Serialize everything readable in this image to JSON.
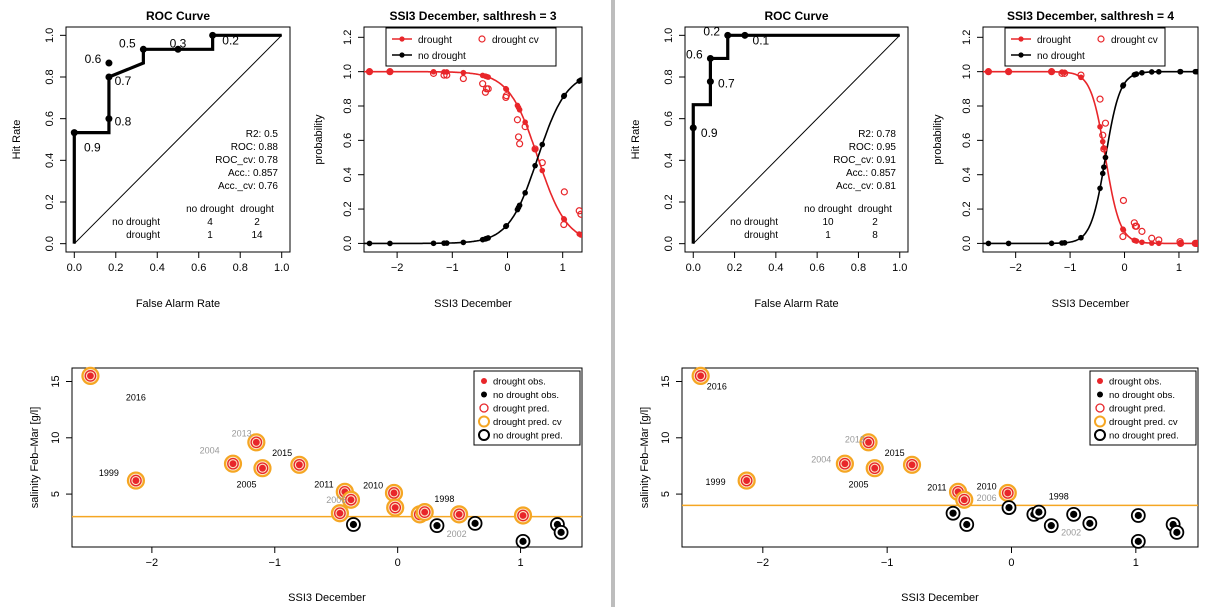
{
  "colors": {
    "drought": "#e8262a",
    "no_drought": "#000000",
    "cv": "#f5a623",
    "threshold": "#f5a623",
    "divider": "#bdbdbd"
  },
  "roc_text": {
    "title": "ROC Curve",
    "xlabel": "False Alarm Rate",
    "ylabel": "Hit Rate",
    "table_head": [
      "no drought",
      "drought"
    ],
    "row_labels": [
      "no drought",
      "drought"
    ]
  },
  "logit_text": {
    "xlabel": "SSI3 December",
    "ylabel": "probability",
    "legend": [
      "drought",
      "drought cv",
      "no drought"
    ]
  },
  "bottom_text": {
    "xlabel": "SSI3 December",
    "ylabel": "salinity Feb–Mar [g/l]",
    "legend": [
      "drought obs.",
      "no drought obs.",
      "drought pred.",
      "drought pred. cv",
      "no drought pred."
    ]
  },
  "chart_data": [
    {
      "type": "line",
      "panel": "roc-left",
      "title": "ROC Curve",
      "xlabel": "False Alarm Rate",
      "ylabel": "Hit Rate",
      "xlim": [
        0,
        1
      ],
      "ylim": [
        0,
        1
      ],
      "xticks": [
        "0.0",
        "0.2",
        "0.4",
        "0.6",
        "0.8",
        "1.0"
      ],
      "yticks": [
        "0.0",
        "0.2",
        "0.4",
        "0.6",
        "0.8",
        "1.0"
      ],
      "curve": {
        "x": [
          0,
          0,
          0.167,
          0.167,
          0.167,
          0.333,
          0.333,
          0.5,
          0.667,
          0.667,
          1
        ],
        "y": [
          0,
          0.533,
          0.533,
          0.6,
          0.8,
          0.867,
          0.933,
          0.933,
          0.933,
          1,
          1
        ]
      },
      "points": [
        {
          "x": 0,
          "y": 0.533,
          "label": "0.9"
        },
        {
          "x": 0.167,
          "y": 0.6,
          "label": "0.8"
        },
        {
          "x": 0.167,
          "y": 0.8,
          "label": "0.7"
        },
        {
          "x": 0.167,
          "y": 0.867,
          "label": "0.6"
        },
        {
          "x": 0.333,
          "y": 0.933,
          "label": "0.5"
        },
        {
          "x": 0.5,
          "y": 0.933,
          "label": "0.3"
        },
        {
          "x": 0.667,
          "y": 1,
          "label": "0.2"
        }
      ],
      "stats": [
        "R2: 0.5",
        "ROC: 0.88",
        "ROC_cv: 0.78",
        "Acc.: 0.857",
        "Acc._cv: 0.76"
      ],
      "confusion": [
        [
          "4",
          "2"
        ],
        [
          "1",
          "14"
        ]
      ]
    },
    {
      "type": "line",
      "panel": "logit-left",
      "title": "SSI3 December, salthresh = 3",
      "xlabel": "SSI3 December",
      "ylabel": "probability",
      "xlim": [
        -2.5,
        1.35
      ],
      "ylim": [
        0,
        1.2
      ],
      "xticks": [
        "−2",
        "−1",
        "0",
        "1"
      ],
      "xtickvals": [
        -2,
        -1,
        0,
        1
      ],
      "yticks": [
        "0.0",
        "0.2",
        "0.4",
        "0.6",
        "0.8",
        "1.0",
        "1.2"
      ],
      "model": {
        "center": 0.55,
        "slope": 3.8
      },
      "obs_x": [
        -2.5,
        -2.13,
        -1.34,
        -1.15,
        -1.1,
        -0.8,
        -0.45,
        -0.4,
        -0.38,
        -0.35,
        -0.03,
        -0.02,
        0.18,
        0.2,
        0.22,
        0.32,
        0.5,
        0.63,
        1.02,
        1.03,
        1.3,
        1.33
      ],
      "cv": {
        "x": [
          -2.5,
          -2.13,
          -1.34,
          -1.15,
          -1.1,
          -0.8,
          -0.45,
          -0.4,
          -0.38,
          -0.35,
          -0.03,
          -0.02,
          0.18,
          0.2,
          0.22,
          0.32,
          0.5,
          0.63,
          1.02,
          1.03,
          1.3,
          1.33
        ],
        "y": [
          1,
          1,
          0.99,
          0.98,
          0.98,
          0.96,
          0.93,
          0.88,
          0.9,
          0.9,
          0.85,
          0.86,
          0.72,
          0.62,
          0.58,
          0.68,
          0.55,
          0.47,
          0.11,
          0.3,
          0.19,
          0.17
        ]
      }
    },
    {
      "type": "scatter",
      "panel": "bottom-left",
      "xlabel": "SSI3 December",
      "ylabel": "salinity Feb–Mar [g/l]",
      "xlim": [
        -2.65,
        1.5
      ],
      "ylim": [
        0.3,
        16.2
      ],
      "xticks": [
        "−2",
        "−1",
        "0",
        "1"
      ],
      "xtickvals": [
        -2,
        -1,
        0,
        1
      ],
      "yticks": [
        "5",
        "10",
        "15"
      ],
      "ytickvals": [
        5,
        10,
        15
      ],
      "threshold": 3,
      "points": [
        {
          "x": -2.5,
          "y": 15.5,
          "d": true
        },
        {
          "x": -2.13,
          "y": 6.2,
          "d": true
        },
        {
          "x": -1.34,
          "y": 7.7,
          "d": true
        },
        {
          "x": -1.15,
          "y": 9.6,
          "d": true
        },
        {
          "x": -1.1,
          "y": 7.3,
          "d": true
        },
        {
          "x": -0.8,
          "y": 7.6,
          "d": true
        },
        {
          "x": -0.43,
          "y": 5.2,
          "d": true
        },
        {
          "x": -0.38,
          "y": 4.5,
          "d": true
        },
        {
          "x": -0.47,
          "y": 3.3,
          "d": true
        },
        {
          "x": -0.36,
          "y": 2.3,
          "d": false
        },
        {
          "x": -0.03,
          "y": 5.1,
          "d": true
        },
        {
          "x": -0.02,
          "y": 3.8,
          "d": true
        },
        {
          "x": 0.18,
          "y": 3.2,
          "d": true
        },
        {
          "x": 0.22,
          "y": 3.4,
          "d": true
        },
        {
          "x": 0.32,
          "y": 2.2,
          "d": false
        },
        {
          "x": 0.5,
          "y": 3.2,
          "d": true
        },
        {
          "x": 0.63,
          "y": 2.4,
          "d": false
        },
        {
          "x": 1.02,
          "y": 3.1,
          "d": true
        },
        {
          "x": 1.3,
          "y": 2.3,
          "d": false
        },
        {
          "x": 1.33,
          "y": 1.6,
          "d": false
        },
        {
          "x": 1.02,
          "y": 0.8,
          "d": false
        }
      ],
      "year_labels": [
        {
          "t": "2016",
          "x": -2.13,
          "y": 13.3,
          "grey": false
        },
        {
          "t": "1999",
          "x": -2.35,
          "y": 6.6,
          "grey": false
        },
        {
          "t": "2013",
          "x": -1.27,
          "y": 10.1,
          "grey": true
        },
        {
          "t": "2004",
          "x": -1.53,
          "y": 8.6,
          "grey": true
        },
        {
          "t": "2015",
          "x": -0.94,
          "y": 8.4,
          "grey": false
        },
        {
          "t": "2005",
          "x": -1.23,
          "y": 5.6,
          "grey": false
        },
        {
          "t": "2011",
          "x": -0.6,
          "y": 5.6,
          "grey": false
        },
        {
          "t": "2006",
          "x": -0.5,
          "y": 4.2,
          "grey": true
        },
        {
          "t": "2010",
          "x": -0.2,
          "y": 5.5,
          "grey": false
        },
        {
          "t": "1998",
          "x": 0.38,
          "y": 4.3,
          "grey": false
        },
        {
          "t": "2002",
          "x": 0.48,
          "y": 1.2,
          "grey": true
        }
      ]
    },
    {
      "type": "line",
      "panel": "roc-right",
      "title": "ROC Curve",
      "xlabel": "False Alarm Rate",
      "ylabel": "Hit Rate",
      "xlim": [
        0,
        1
      ],
      "ylim": [
        0,
        1
      ],
      "xticks": [
        "0.0",
        "0.2",
        "0.4",
        "0.6",
        "0.8",
        "1.0"
      ],
      "yticks": [
        "0.0",
        "0.2",
        "0.4",
        "0.6",
        "0.8",
        "1.0"
      ],
      "curve": {
        "x": [
          0,
          0,
          0,
          0.083,
          0.083,
          0.083,
          0.167,
          0.167,
          0.25,
          1
        ],
        "y": [
          0,
          0.556,
          0.667,
          0.667,
          0.778,
          0.889,
          0.889,
          1,
          1,
          1
        ]
      },
      "points": [
        {
          "x": 0,
          "y": 0.556,
          "label": "0.9"
        },
        {
          "x": 0.083,
          "y": 0.778,
          "label": "0.7"
        },
        {
          "x": 0.083,
          "y": 0.889,
          "label": "0.6"
        },
        {
          "x": 0.167,
          "y": 1,
          "label": "0.2"
        },
        {
          "x": 0.25,
          "y": 1,
          "label": "0.1"
        }
      ],
      "stats": [
        "R2: 0.78",
        "ROC: 0.95",
        "ROC_cv: 0.91",
        "Acc.: 0.857",
        "Acc._cv: 0.81"
      ],
      "confusion": [
        [
          "10",
          "2"
        ],
        [
          "1",
          "8"
        ]
      ]
    },
    {
      "type": "line",
      "panel": "logit-right",
      "title": "SSI3 December, salthresh = 4",
      "xlabel": "SSI3 December",
      "ylabel": "probability",
      "xlim": [
        -2.5,
        1.35
      ],
      "ylim": [
        0,
        1.2
      ],
      "xticks": [
        "−2",
        "−1",
        "0",
        "1"
      ],
      "xtickvals": [
        -2,
        -1,
        0,
        1
      ],
      "yticks": [
        "0.0",
        "0.2",
        "0.4",
        "0.6",
        "0.8",
        "1.0",
        "1.2"
      ],
      "model": {
        "center": -0.35,
        "slope": 7.5
      },
      "obs_x": [
        -2.5,
        -2.13,
        -1.34,
        -1.15,
        -1.1,
        -0.8,
        -0.45,
        -0.4,
        -0.38,
        -0.35,
        -0.03,
        -0.02,
        0.18,
        0.2,
        0.22,
        0.32,
        0.5,
        0.63,
        1.02,
        1.03,
        1.3,
        1.33
      ],
      "cv": {
        "x": [
          -2.5,
          -2.13,
          -1.34,
          -1.15,
          -1.1,
          -0.8,
          -0.45,
          -0.4,
          -0.38,
          -0.35,
          -0.03,
          -0.02,
          0.18,
          0.2,
          0.22,
          0.32,
          0.5,
          0.63,
          1.02,
          1.03,
          1.3,
          1.33
        ],
        "y": [
          1,
          1,
          1,
          0.99,
          0.99,
          0.98,
          0.84,
          0.63,
          0.55,
          0.7,
          0.04,
          0.25,
          0.12,
          0.1,
          0.1,
          0.07,
          0.03,
          0.02,
          0.01,
          0,
          0,
          0
        ]
      }
    },
    {
      "type": "scatter",
      "panel": "bottom-right",
      "xlabel": "SSI3 December",
      "ylabel": "salinity Feb–Mar [g/l]",
      "xlim": [
        -2.65,
        1.5
      ],
      "ylim": [
        0.3,
        16.2
      ],
      "xticks": [
        "−2",
        "−1",
        "0",
        "1"
      ],
      "xtickvals": [
        -2,
        -1,
        0,
        1
      ],
      "yticks": [
        "5",
        "10",
        "15"
      ],
      "ytickvals": [
        5,
        10,
        15
      ],
      "threshold": 4,
      "points": [
        {
          "x": -2.5,
          "y": 15.5,
          "d": true
        },
        {
          "x": -2.13,
          "y": 6.2,
          "d": true
        },
        {
          "x": -1.34,
          "y": 7.7,
          "d": true
        },
        {
          "x": -1.15,
          "y": 9.6,
          "d": true
        },
        {
          "x": -1.1,
          "y": 7.3,
          "d": true
        },
        {
          "x": -0.8,
          "y": 7.6,
          "d": true
        },
        {
          "x": -0.43,
          "y": 5.2,
          "d": true
        },
        {
          "x": -0.38,
          "y": 4.5,
          "d": true
        },
        {
          "x": -0.47,
          "y": 3.3,
          "d": false
        },
        {
          "x": -0.36,
          "y": 2.3,
          "d": false
        },
        {
          "x": -0.03,
          "y": 5.1,
          "d": true
        },
        {
          "x": -0.02,
          "y": 3.8,
          "d": false
        },
        {
          "x": 0.18,
          "y": 3.2,
          "d": false
        },
        {
          "x": 0.22,
          "y": 3.4,
          "d": false
        },
        {
          "x": 0.32,
          "y": 2.2,
          "d": false
        },
        {
          "x": 0.5,
          "y": 3.2,
          "d": false
        },
        {
          "x": 0.63,
          "y": 2.4,
          "d": false
        },
        {
          "x": 1.02,
          "y": 3.1,
          "d": false
        },
        {
          "x": 1.3,
          "y": 2.3,
          "d": false
        },
        {
          "x": 1.33,
          "y": 1.6,
          "d": false
        },
        {
          "x": 1.02,
          "y": 0.8,
          "d": false
        }
      ],
      "year_labels": [
        {
          "t": "2016",
          "x": -2.37,
          "y": 14.3,
          "grey": false
        },
        {
          "t": "1999",
          "x": -2.38,
          "y": 5.8,
          "grey": false
        },
        {
          "t": "2013",
          "x": -1.26,
          "y": 9.6,
          "grey": true
        },
        {
          "t": "2004",
          "x": -1.53,
          "y": 7.8,
          "grey": true
        },
        {
          "t": "2015",
          "x": -0.94,
          "y": 8.4,
          "grey": false
        },
        {
          "t": "2005",
          "x": -1.23,
          "y": 5.6,
          "grey": false
        },
        {
          "t": "2011",
          "x": -0.6,
          "y": 5.3,
          "grey": false
        },
        {
          "t": "2006",
          "x": -0.2,
          "y": 4.4,
          "grey": true
        },
        {
          "t": "2010",
          "x": -0.2,
          "y": 5.4,
          "grey": false
        },
        {
          "t": "1998",
          "x": 0.38,
          "y": 4.5,
          "grey": false
        },
        {
          "t": "2002",
          "x": 0.48,
          "y": 1.3,
          "grey": true
        }
      ]
    }
  ]
}
